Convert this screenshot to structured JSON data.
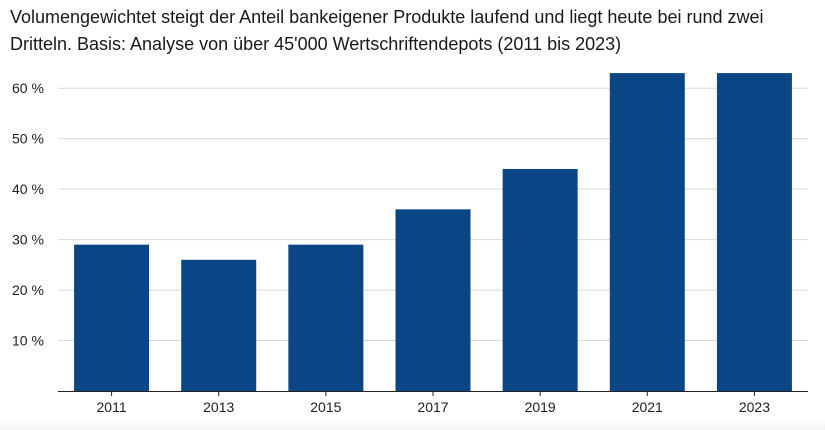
{
  "chart_data": {
    "type": "bar",
    "title": "Volumengewichtet steigt der Anteil bankeigener Produkte laufend und liegt heute bei rund zwei Dritteln. Basis: Analyse von über 45'000 Wertschriftendepots (2011 bis 2023)",
    "categories": [
      "2011",
      "2013",
      "2015",
      "2017",
      "2019",
      "2021",
      "2023"
    ],
    "values": [
      29,
      26,
      29,
      36,
      44,
      63,
      63
    ],
    "unit": "%",
    "xlabel": "",
    "ylabel": "",
    "ylim": [
      0,
      65
    ],
    "yticks": [
      10,
      20,
      30,
      40,
      50,
      60
    ],
    "ytick_labels": [
      "10 %",
      "20 %",
      "30 %",
      "40 %",
      "50 %",
      "60 %"
    ],
    "grid": true,
    "legend": "none",
    "colors": {
      "bar": "#0a4586",
      "grid": "#d9d9d9",
      "axis": "#222222"
    }
  }
}
